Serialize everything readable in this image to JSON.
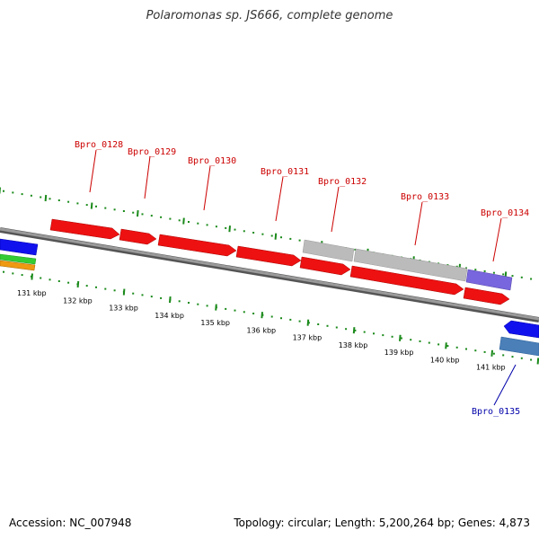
{
  "title": "Polaromonas sp. JS666, complete genome",
  "footer": {
    "accession": "Accession: NC_007948",
    "summary": "Topology: circular; Length: 5,200,264 bp; Genes: 4,873"
  },
  "colors": {
    "background": "#ffffff",
    "backbone": "#808080",
    "tick": "#1a8a1a",
    "forward_gene": "#ee1111",
    "hypothetical_gene": "#bbbbbb",
    "purple_gene": "#7766dd",
    "blue_gene": "#1111ee",
    "steelblue_gene": "#4a7fb8",
    "green_gene": "#33cc33",
    "orange_gene": "#ee9911",
    "label_forward": "#cc0000",
    "label_reverse": "#0000aa"
  },
  "scale": {
    "ticks": [
      "131 kbp",
      "132 kbp",
      "133 kbp",
      "134 kbp",
      "135 kbp",
      "136 kbp",
      "137 kbp",
      "138 kbp",
      "139 kbp",
      "140 kbp",
      "141 kbp"
    ]
  },
  "genes": {
    "forward": [
      {
        "label": "Bpro_0128",
        "color": "forward_gene"
      },
      {
        "label": "Bpro_0129",
        "color": "forward_gene"
      },
      {
        "label": "Bpro_0130",
        "color": "forward_gene"
      },
      {
        "label": "Bpro_0131",
        "color": "forward_gene"
      },
      {
        "label": "Bpro_0132",
        "color": "hypothetical_gene"
      },
      {
        "label": "Bpro_0133",
        "color": "hypothetical_gene"
      },
      {
        "label": "Bpro_0134",
        "color": "purple_gene"
      }
    ],
    "reverse": [
      {
        "label": "Bpro_0135",
        "color": "steelblue_gene"
      }
    ]
  }
}
